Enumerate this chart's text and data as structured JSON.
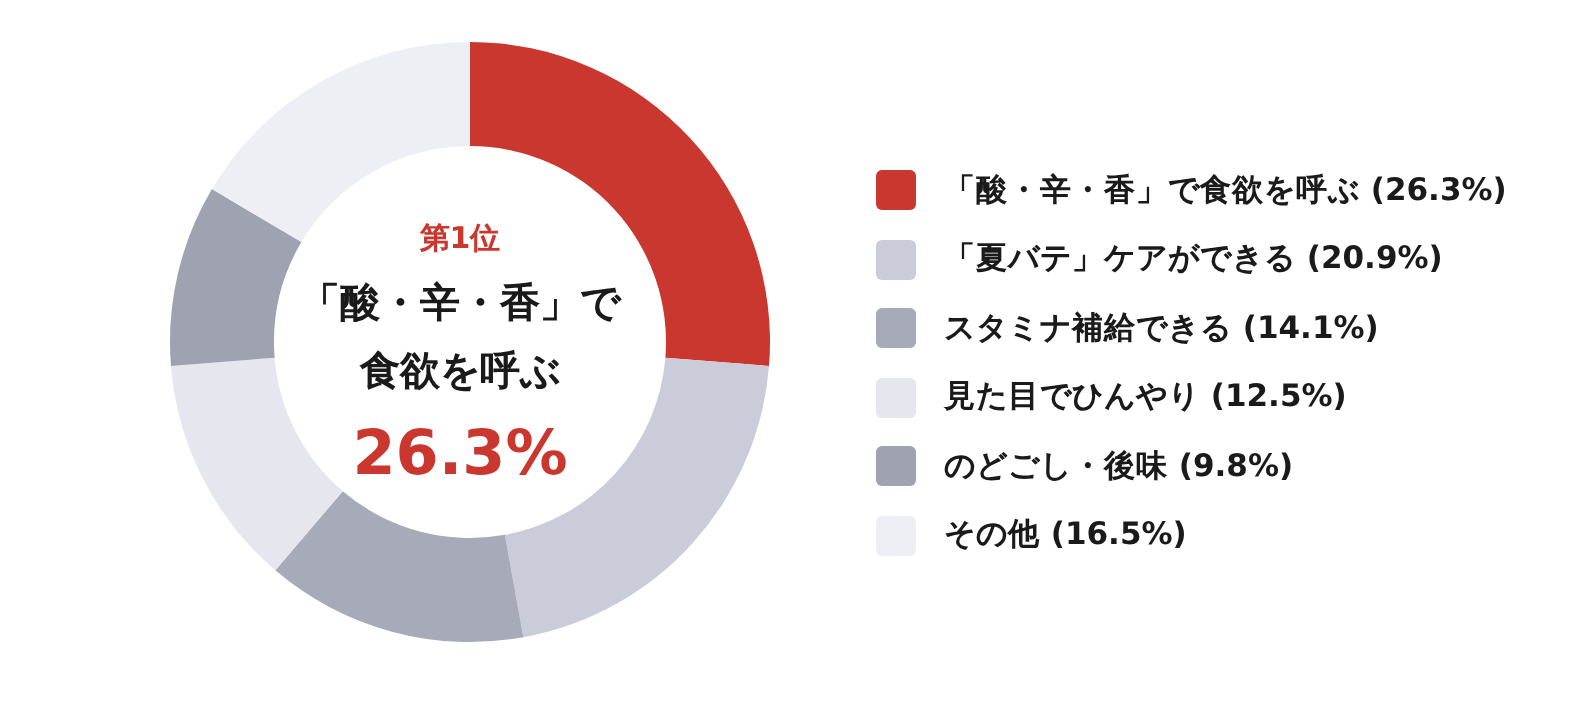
{
  "chart_data": {
    "type": "donut",
    "categories": [
      "「酸・辛・香」で食欲を呼ぶ",
      "「夏バテ」ケアができる",
      "スタミナ補給できる",
      "見た目でひんやり",
      "のどごし・後味",
      "その他"
    ],
    "values": [
      26.3,
      20.9,
      14.1,
      12.5,
      9.8,
      16.5
    ],
    "value_labels": [
      "(26.3%)",
      "(20.9%)",
      "(14.1%)",
      "(12.5%)",
      "(9.8%)",
      "(16.5%)"
    ],
    "colors": [
      "#c9372e",
      "#cacdd9",
      "#a7abb9",
      "#e6e7ee",
      "#9ea2b1",
      "#eeeff4"
    ],
    "annotations": [
      "第1位",
      "「酸・辛・香」で",
      "食欲を呼ぶ",
      "26.3%"
    ],
    "legend": "right"
  }
}
